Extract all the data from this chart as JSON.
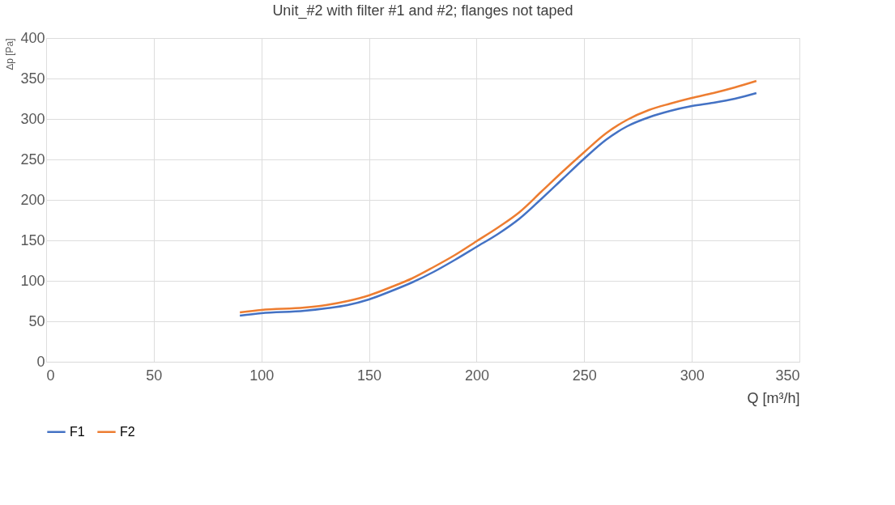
{
  "chart_data": {
    "type": "line",
    "title": "Unit_#2 with filter #1 and #2; flanges not taped",
    "xlabel": "Q [m³/h]",
    "ylabel": "∆p [Pa]",
    "x": [
      90,
      100,
      120,
      130,
      140,
      150,
      160,
      170,
      180,
      190,
      200,
      210,
      220,
      230,
      240,
      250,
      260,
      270,
      280,
      290,
      300,
      310,
      320,
      330
    ],
    "series": [
      {
        "name": "F1",
        "color": "#4472c4",
        "values": [
          57,
          60,
          63,
          66,
          70,
          77,
          87,
          98,
          111,
          126,
          142,
          158,
          177,
          201,
          226,
          251,
          274,
          291,
          302,
          310,
          316,
          320,
          325,
          332
        ]
      },
      {
        "name": "F2",
        "color": "#ed7d31",
        "values": [
          61,
          64,
          67,
          70,
          75,
          82,
          92,
          103,
          117,
          132,
          149,
          166,
          185,
          210,
          235,
          259,
          282,
          299,
          311,
          319,
          326,
          332,
          339,
          347
        ]
      }
    ],
    "xlim": [
      0,
      350
    ],
    "xticks": [
      0,
      50,
      100,
      150,
      200,
      250,
      300,
      350
    ],
    "ylim": [
      0,
      400
    ],
    "yticks": [
      0,
      50,
      100,
      150,
      200,
      250,
      300,
      350,
      400
    ],
    "grid": true,
    "legend": "bottom",
    "marker": "none",
    "line_style": "solid"
  }
}
